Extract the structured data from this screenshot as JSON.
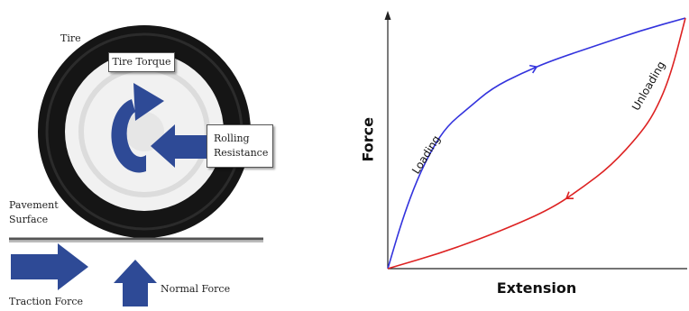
{
  "tire_diagram": {
    "tire_label": "Tire",
    "tire_torque_label": "Tire Torque",
    "rolling_resistance_label": "Rolling Resistance",
    "pavement_surface_label": "Pavement Surface",
    "traction_force_label": "Traction Force",
    "normal_force_label": "Normal Force",
    "arrow_color": "#2E4A96",
    "tire_color": "#151515"
  },
  "chart_data": {
    "type": "line",
    "title": "",
    "xlabel": "Extension",
    "ylabel": "Force",
    "xlim": [
      0,
      1
    ],
    "ylim": [
      0,
      1
    ],
    "grid": false,
    "series": [
      {
        "name": "Loading",
        "color": "#3333dd",
        "x": [
          0,
          0.05,
          0.1,
          0.15,
          0.2,
          0.27,
          0.35,
          0.45,
          0.55,
          0.7,
          0.85,
          1.0
        ],
        "y": [
          0,
          0.2,
          0.36,
          0.48,
          0.57,
          0.64,
          0.72,
          0.78,
          0.83,
          0.89,
          0.95,
          1.0
        ]
      },
      {
        "name": "Unloading",
        "color": "#dd2222",
        "x": [
          0,
          0.2,
          0.4,
          0.55,
          0.65,
          0.75,
          0.85,
          0.9,
          0.95,
          1.0
        ],
        "y": [
          0,
          0.07,
          0.16,
          0.24,
          0.32,
          0.41,
          0.54,
          0.63,
          0.77,
          1.0
        ]
      }
    ]
  }
}
